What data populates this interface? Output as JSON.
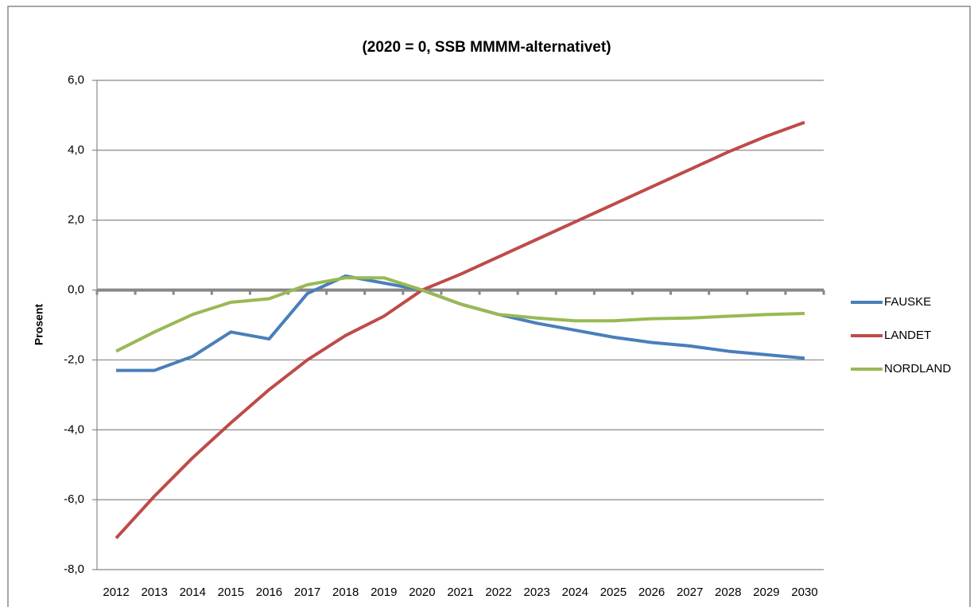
{
  "chart_data": {
    "type": "line",
    "title": "(2020 = 0, SSB MMMM-alternativet)",
    "y_label": "Prosent",
    "categories": [
      "2012",
      "2013",
      "2014",
      "2015",
      "2016",
      "2017",
      "2018",
      "2019",
      "2020",
      "2021",
      "2022",
      "2023",
      "2024",
      "2025",
      "2026",
      "2027",
      "2028",
      "2029",
      "2030"
    ],
    "series": [
      {
        "name": "FAUSKE",
        "color": "#4a7ebb",
        "values": [
          -2.3,
          -2.3,
          -1.9,
          -1.2,
          -1.4,
          -0.1,
          0.4,
          0.2,
          0,
          -0.4,
          -0.7,
          -0.95,
          -1.15,
          -1.35,
          -1.5,
          -1.6,
          -1.75,
          -1.85,
          -1.95
        ]
      },
      {
        "name": "LANDET",
        "color": "#be4b48",
        "values": [
          -7.1,
          -5.9,
          -4.8,
          -3.8,
          -2.85,
          -2.0,
          -1.3,
          -0.75,
          0,
          0.45,
          0.95,
          1.45,
          1.95,
          2.45,
          2.95,
          3.45,
          3.95,
          4.4,
          4.8
        ]
      },
      {
        "name": "NORDLAND",
        "color": "#98b954",
        "values": [
          -1.75,
          -1.2,
          -0.7,
          -0.35,
          -0.25,
          0.15,
          0.35,
          0.35,
          0,
          -0.4,
          -0.7,
          -0.8,
          -0.88,
          -0.88,
          -0.82,
          -0.8,
          -0.75,
          -0.7,
          -0.67
        ]
      }
    ],
    "ylim": [
      -8,
      6
    ],
    "yticks": [
      {
        "value": -8,
        "label": "-8,0"
      },
      {
        "value": -6,
        "label": "-6,0"
      },
      {
        "value": -4,
        "label": "-4,0"
      },
      {
        "value": -2,
        "label": "-2,0"
      },
      {
        "value": 0,
        "label": "0,0"
      },
      {
        "value": 2,
        "label": "2,0"
      },
      {
        "value": 4,
        "label": "4,0"
      },
      {
        "value": 6,
        "label": "6,0"
      }
    ],
    "grid": true,
    "legend": "right"
  }
}
